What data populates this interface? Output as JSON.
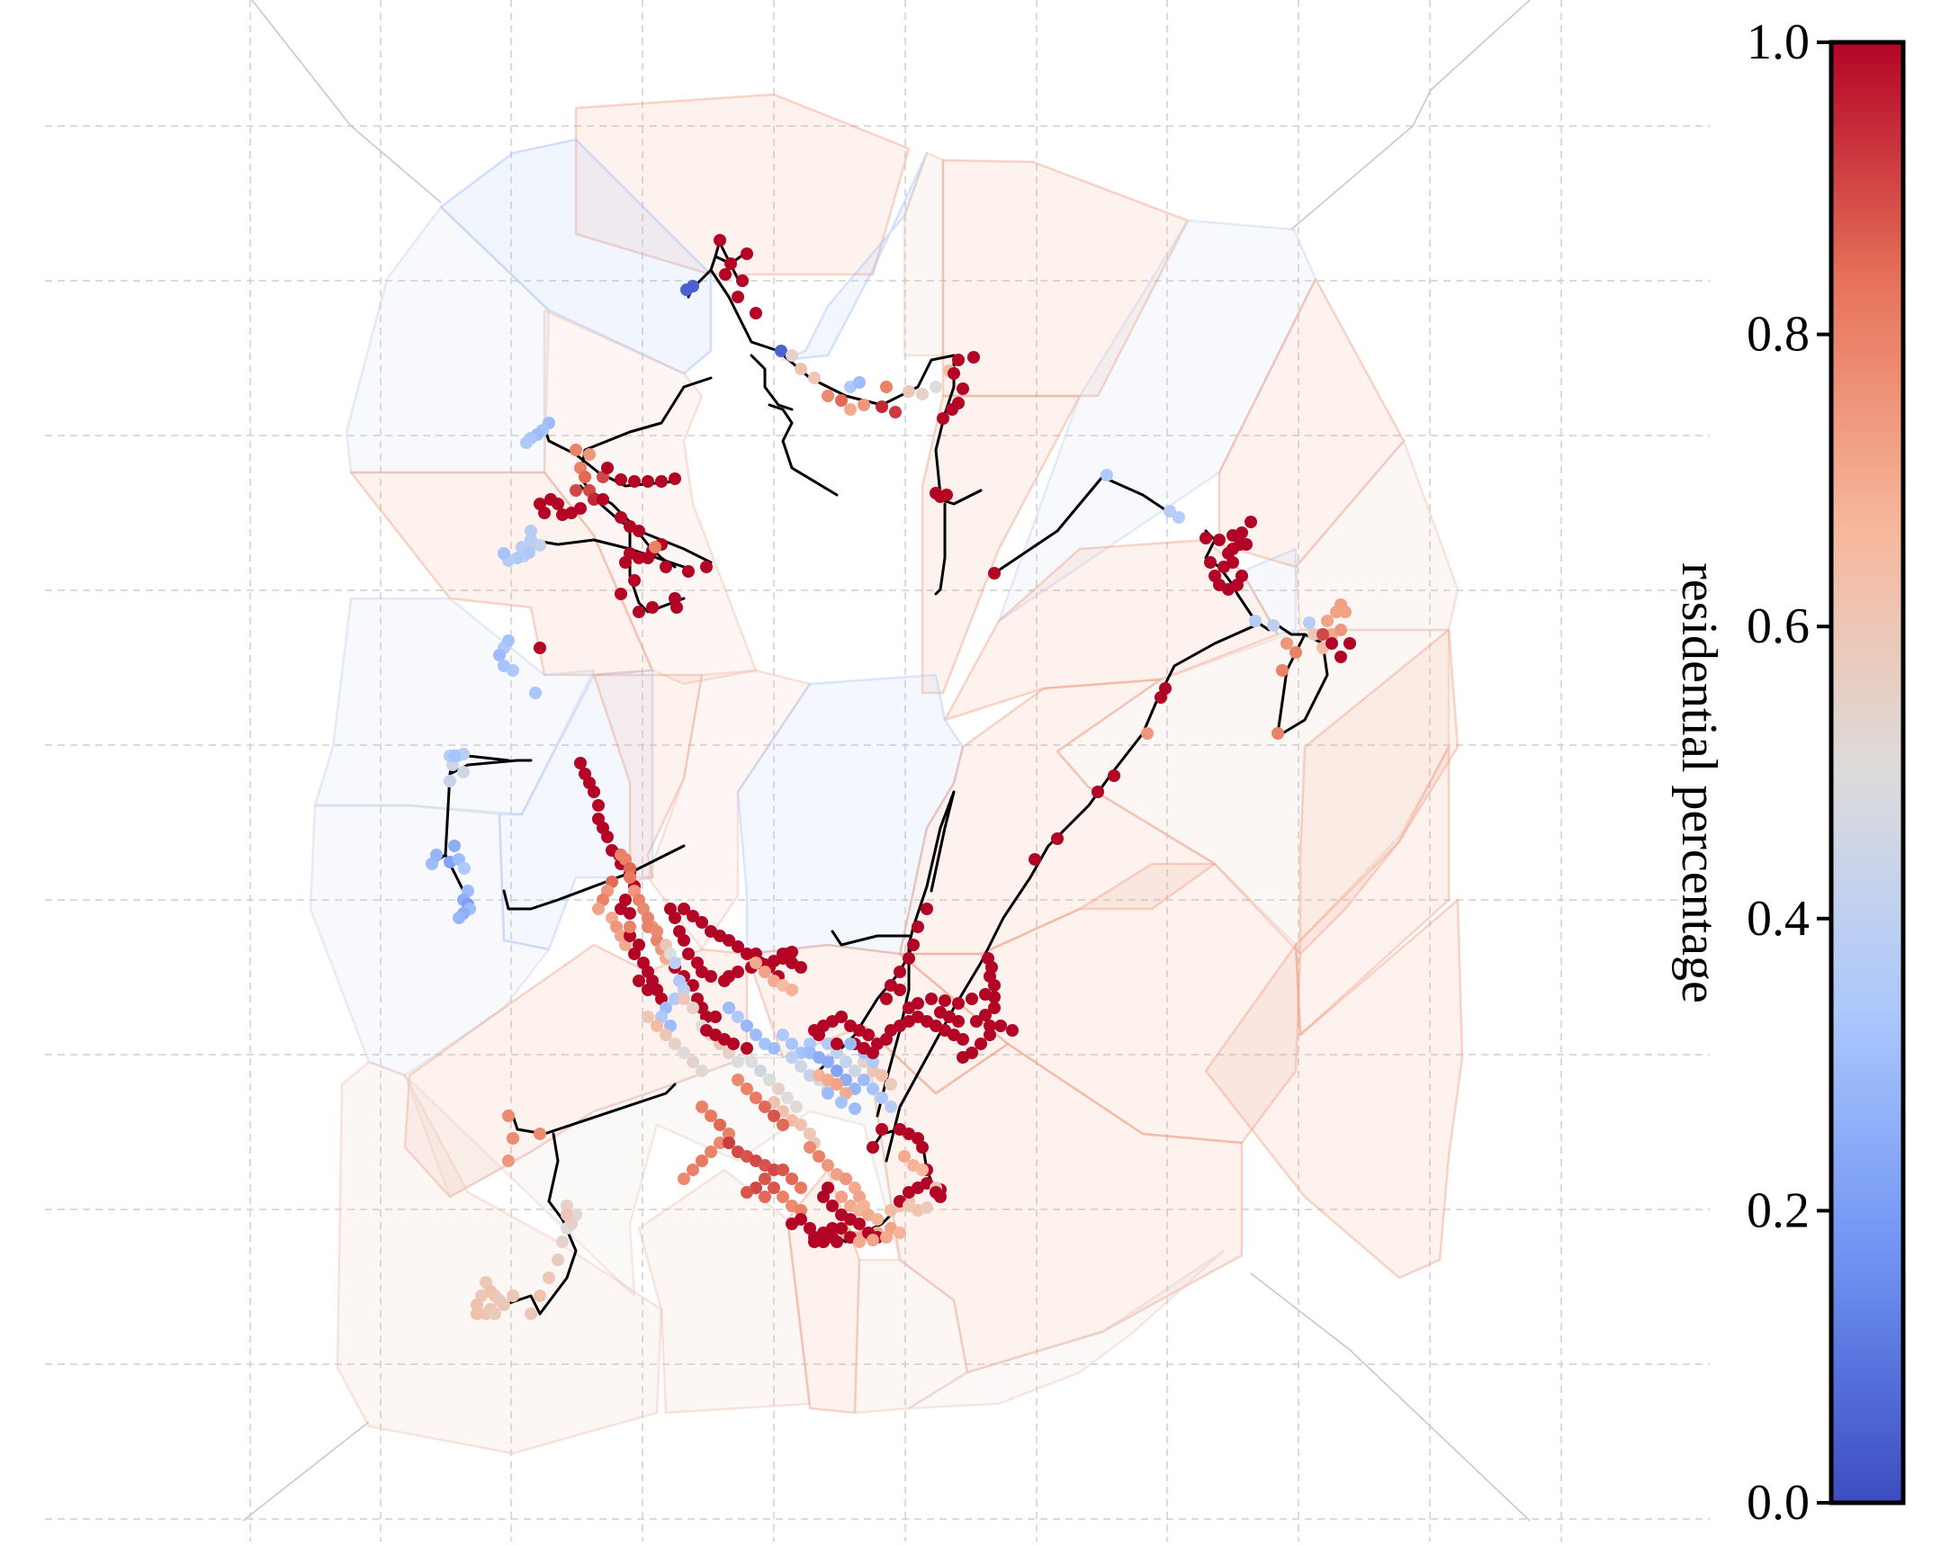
{
  "colorbar": {
    "label": "residential percentage",
    "ticks": [
      {
        "value": 0.0,
        "label": "0.0"
      },
      {
        "value": 0.2,
        "label": "0.2"
      },
      {
        "value": 0.4,
        "label": "0.4"
      },
      {
        "value": 0.6,
        "label": "0.6"
      },
      {
        "value": 0.8,
        "label": "0.8"
      },
      {
        "value": 1.0,
        "label": "1.0"
      }
    ],
    "range": [
      0.0,
      1.0
    ],
    "colormap": "coolwarm",
    "stops": [
      "#3b4cc0",
      "#6f92f3",
      "#aac7fd",
      "#dddcdc",
      "#f7b89c",
      "#e7745b",
      "#b40426"
    ]
  },
  "legend_placement": "right",
  "grid": true
}
